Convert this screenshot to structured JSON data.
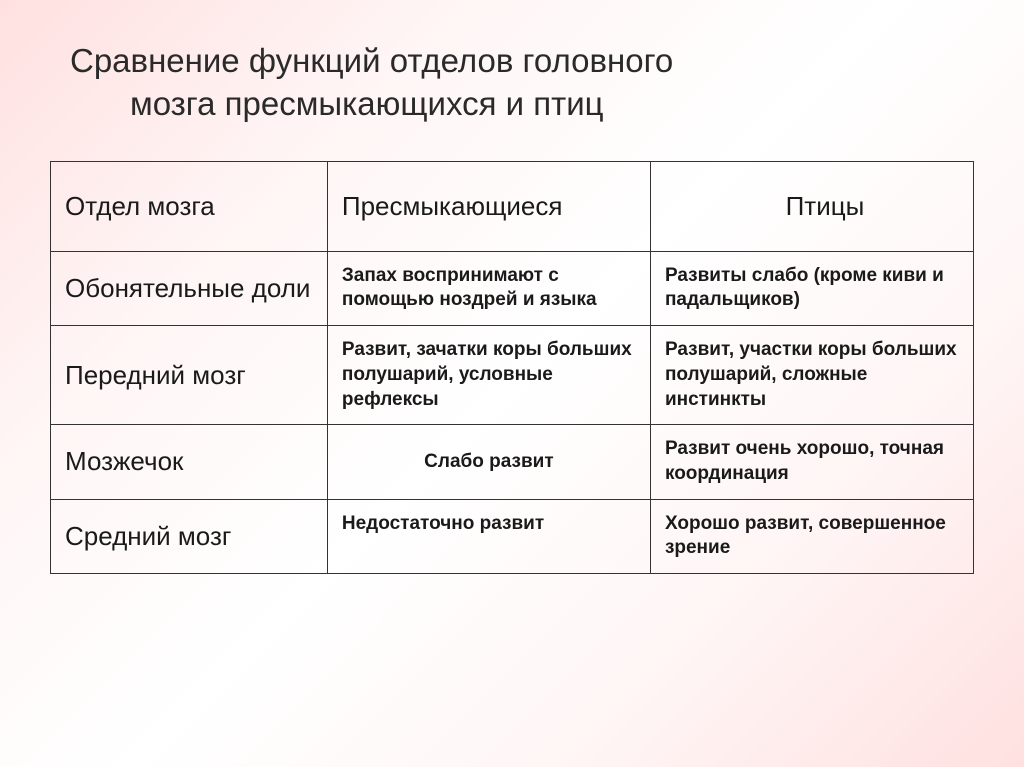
{
  "title": {
    "line1": "Сравнение функций отделов головного",
    "line2": "мозга пресмыкающихся и птиц"
  },
  "table": {
    "headers": [
      "Отдел мозга",
      "Пресмыкающиеся",
      "Птицы"
    ],
    "rows": [
      {
        "section": "Обонятельные доли",
        "reptiles": "Запах воспринимают с помощью ноздрей и языка",
        "birds": "Развиты слабо (кроме киви и падальщиков)"
      },
      {
        "section": "Передний мозг",
        "reptiles": "Развит, зачатки коры больших полушарий, условные рефлексы",
        "birds": "Развит, участки коры больших полушарий, сложные инстинкты"
      },
      {
        "section": "Мозжечок",
        "reptiles": "Слабо развит",
        "birds": "Развит очень хорошо, точная координация"
      },
      {
        "section": "Средний мозг",
        "reptiles": "Недостаточно развит",
        "birds": "Хорошо развит, совершенное зрение"
      }
    ]
  },
  "styling": {
    "background_gradient": [
      "#ffe0e0",
      "#fff5f5",
      "#ffffff",
      "#fff5f5",
      "#ffe0e0"
    ],
    "title_fontsize": 33,
    "title_color": "#2a2a2a",
    "header_fontsize": 26,
    "section_cell_fontsize": 26,
    "data_cell_fontsize": 19,
    "data_cell_fontweight": "bold",
    "border_color": "#333333",
    "border_width": 1.5,
    "col_widths": [
      "30%",
      "35%",
      "35%"
    ]
  }
}
